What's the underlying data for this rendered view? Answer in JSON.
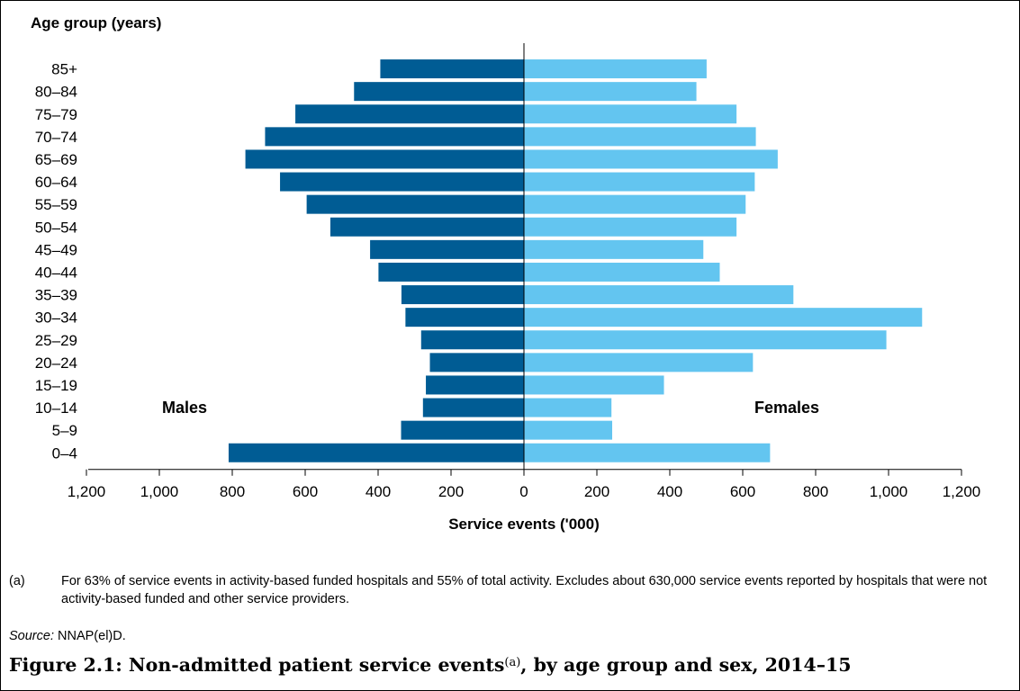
{
  "chart_data": {
    "type": "bar",
    "orientation": "horizontal",
    "subtype": "population-pyramid",
    "categories": [
      "85+",
      "80–84",
      "75–79",
      "70–74",
      "65–69",
      "60–64",
      "55–59",
      "50–54",
      "45–49",
      "40–44",
      "35–39",
      "30–34",
      "25–29",
      "20–24",
      "15–19",
      "10–14",
      "5–9",
      "0–4"
    ],
    "series": [
      {
        "name": "Males",
        "side": "left",
        "color": "#005C94",
        "values": [
          394,
          466,
          627,
          710,
          764,
          669,
          596,
          531,
          422,
          399,
          336,
          325,
          282,
          258,
          269,
          277,
          337,
          810
        ]
      },
      {
        "name": "Females",
        "side": "right",
        "color": "#63C5F0",
        "values": [
          501,
          473,
          583,
          636,
          696,
          633,
          608,
          583,
          492,
          537,
          739,
          1092,
          994,
          628,
          384,
          240,
          242,
          675
        ]
      }
    ],
    "xlabel": "Service events ('000)",
    "ylabel": "Age group (years)",
    "xlim": [
      -1200,
      1200
    ],
    "xticks": [
      "1,200",
      "1,000",
      "800",
      "600",
      "400",
      "200",
      "0",
      "200",
      "400",
      "600",
      "800",
      "1,000",
      "1,200"
    ],
    "grid": false
  },
  "note": {
    "marker": "(a)",
    "text": "For 63% of service events in activity-based funded hospitals and 55% of total activity. Excludes about 630,000 service events reported by hospitals that were not activity-based funded and other service providers."
  },
  "source": {
    "label": "Source:",
    "text": "NNAP(el)D."
  },
  "caption": {
    "main": "Figure 2.1: Non-admitted patient service events",
    "superscript": "(a)",
    "rest": ", by age group and sex, 2014–15"
  }
}
